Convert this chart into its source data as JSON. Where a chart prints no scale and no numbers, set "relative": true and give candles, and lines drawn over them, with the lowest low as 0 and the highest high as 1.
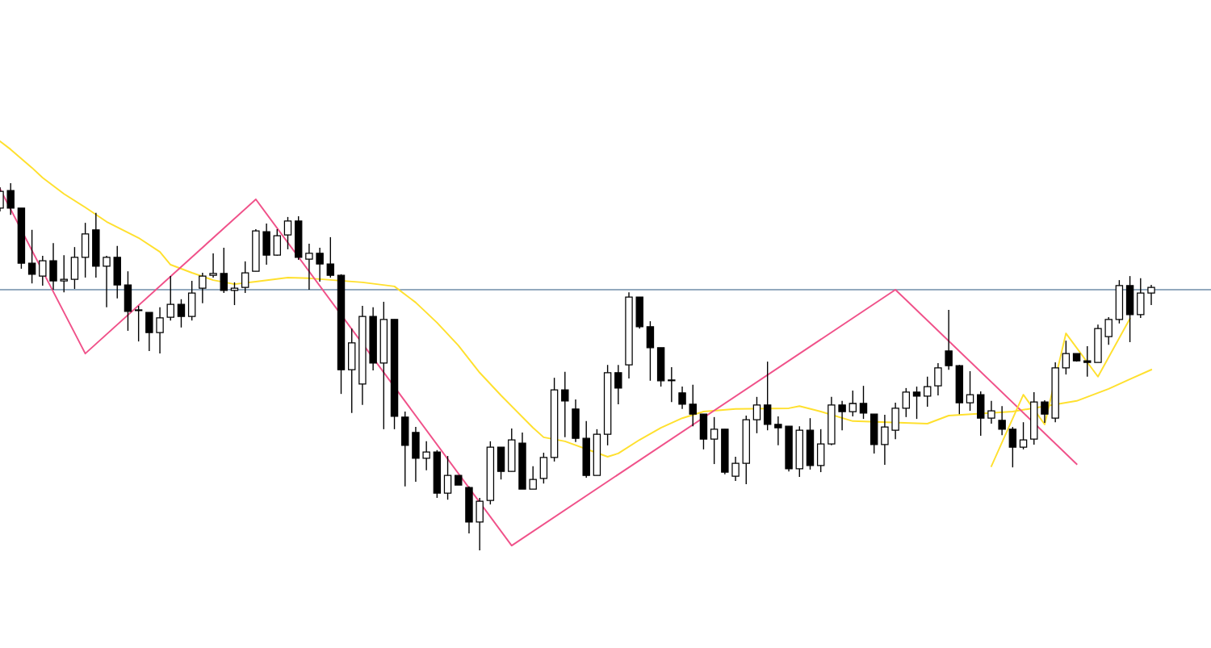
{
  "chart_data": {
    "type": "candlestick",
    "relative": true,
    "tick_labels": false,
    "categories": [
      null,
      null,
      null,
      null,
      null,
      null,
      null,
      null,
      null,
      null,
      null,
      null,
      null,
      null,
      null,
      null,
      null,
      null,
      null,
      null,
      null,
      null,
      null,
      null,
      null,
      null,
      null,
      null,
      null,
      null,
      null,
      null,
      null,
      null,
      null,
      null,
      null,
      null,
      null,
      null,
      null,
      null,
      null,
      null,
      null,
      null,
      null,
      null,
      null,
      null,
      null,
      null,
      null,
      null,
      null,
      null,
      null,
      null,
      null,
      null,
      null,
      null,
      null,
      null,
      null,
      null,
      null,
      null,
      null,
      null,
      null,
      null,
      null,
      null,
      null,
      null,
      null,
      null,
      null,
      null,
      null,
      null,
      null,
      null,
      null,
      null,
      null,
      null,
      null,
      null,
      null,
      null,
      null,
      null,
      null,
      null,
      null,
      null,
      null,
      null,
      null,
      null,
      null,
      null,
      null,
      null,
      null,
      null,
      null
    ],
    "ohlc": [
      [
        0.932,
        0.989,
        0.923,
        0.978
      ],
      [
        0.98,
        1.0,
        0.914,
        0.932
      ],
      [
        0.932,
        0.932,
        0.767,
        0.782
      ],
      [
        0.782,
        0.873,
        0.727,
        0.752
      ],
      [
        0.747,
        0.802,
        0.721,
        0.789
      ],
      [
        0.789,
        0.837,
        0.71,
        0.734
      ],
      [
        0.734,
        0.804,
        0.703,
        0.738
      ],
      [
        0.738,
        0.826,
        0.712,
        0.798
      ],
      [
        0.798,
        0.892,
        0.743,
        0.862
      ],
      [
        0.873,
        0.919,
        0.743,
        0.774
      ],
      [
        0.774,
        0.802,
        0.662,
        0.798
      ],
      [
        0.798,
        0.829,
        0.686,
        0.723
      ],
      [
        0.723,
        0.76,
        0.598,
        0.651
      ],
      [
        0.653,
        0.666,
        0.569,
        0.655
      ],
      [
        0.648,
        0.648,
        0.543,
        0.593
      ],
      [
        0.593,
        0.662,
        0.536,
        0.633
      ],
      [
        0.635,
        0.747,
        0.626,
        0.67
      ],
      [
        0.67,
        0.684,
        0.607,
        0.637
      ],
      [
        0.637,
        0.734,
        0.626,
        0.701
      ],
      [
        0.714,
        0.756,
        0.673,
        0.747
      ],
      [
        0.749,
        0.809,
        0.743,
        0.754
      ],
      [
        0.754,
        0.824,
        0.701,
        0.708
      ],
      [
        0.708,
        0.73,
        0.668,
        0.714
      ],
      [
        0.716,
        0.787,
        0.701,
        0.756
      ],
      [
        0.76,
        0.875,
        0.76,
        0.87
      ],
      [
        0.868,
        0.89,
        0.778,
        0.804
      ],
      [
        0.804,
        0.875,
        0.802,
        0.857
      ],
      [
        0.859,
        0.908,
        0.82,
        0.897
      ],
      [
        0.897,
        0.91,
        0.791,
        0.798
      ],
      [
        0.793,
        0.835,
        0.71,
        0.809
      ],
      [
        0.809,
        0.824,
        0.732,
        0.78
      ],
      [
        0.78,
        0.853,
        0.743,
        0.749
      ],
      [
        0.749,
        0.752,
        0.426,
        0.492
      ],
      [
        0.492,
        0.604,
        0.374,
        0.565
      ],
      [
        0.453,
        0.666,
        0.396,
        0.637
      ],
      [
        0.637,
        0.662,
        0.49,
        0.51
      ],
      [
        0.51,
        0.677,
        0.33,
        0.629
      ],
      [
        0.629,
        0.629,
        0.33,
        0.365
      ],
      [
        0.363,
        0.378,
        0.174,
        0.286
      ],
      [
        0.321,
        0.336,
        0.187,
        0.251
      ],
      [
        0.251,
        0.297,
        0.218,
        0.268
      ],
      [
        0.268,
        0.273,
        0.143,
        0.156
      ],
      [
        0.156,
        0.257,
        0.138,
        0.204
      ],
      [
        0.204,
        0.204,
        0.178,
        0.178
      ],
      [
        0.171,
        0.174,
        0.046,
        0.077
      ],
      [
        0.077,
        0.143,
        0.0,
        0.134
      ],
      [
        0.136,
        0.297,
        0.125,
        0.281
      ],
      [
        0.281,
        0.281,
        0.193,
        0.215
      ],
      [
        0.215,
        0.332,
        0.215,
        0.301
      ],
      [
        0.292,
        0.321,
        0.167,
        0.167
      ],
      [
        0.167,
        0.229,
        0.167,
        0.193
      ],
      [
        0.196,
        0.266,
        0.182,
        0.253
      ],
      [
        0.253,
        0.47,
        0.242,
        0.437
      ],
      [
        0.437,
        0.486,
        0.308,
        0.407
      ],
      [
        0.385,
        0.411,
        0.295,
        0.305
      ],
      [
        0.305,
        0.352,
        0.198,
        0.204
      ],
      [
        0.204,
        0.33,
        0.204,
        0.316
      ],
      [
        0.316,
        0.505,
        0.286,
        0.484
      ],
      [
        0.484,
        0.505,
        0.398,
        0.442
      ],
      [
        0.505,
        0.703,
        0.468,
        0.69
      ],
      [
        0.69,
        0.69,
        0.604,
        0.609
      ],
      [
        0.609,
        0.624,
        0.462,
        0.552
      ],
      [
        0.552,
        0.552,
        0.446,
        0.462
      ],
      [
        0.464,
        0.499,
        0.404,
        0.462
      ],
      [
        0.429,
        0.446,
        0.385,
        0.398
      ],
      [
        0.398,
        0.451,
        0.338,
        0.371
      ],
      [
        0.371,
        0.371,
        0.275,
        0.303
      ],
      [
        0.303,
        0.363,
        0.235,
        0.33
      ],
      [
        0.33,
        0.33,
        0.207,
        0.213
      ],
      [
        0.202,
        0.255,
        0.189,
        0.237
      ],
      [
        0.237,
        0.367,
        0.18,
        0.356
      ],
      [
        0.356,
        0.418,
        0.319,
        0.396
      ],
      [
        0.396,
        0.514,
        0.327,
        0.343
      ],
      [
        0.343,
        0.365,
        0.286,
        0.334
      ],
      [
        0.338,
        0.338,
        0.215,
        0.222
      ],
      [
        0.222,
        0.338,
        0.2,
        0.327
      ],
      [
        0.327,
        0.36,
        0.22,
        0.231
      ],
      [
        0.231,
        0.33,
        0.213,
        0.29
      ],
      [
        0.29,
        0.418,
        0.286,
        0.396
      ],
      [
        0.396,
        0.407,
        0.327,
        0.378
      ],
      [
        0.378,
        0.435,
        0.365,
        0.4
      ],
      [
        0.4,
        0.448,
        0.358,
        0.374
      ],
      [
        0.371,
        0.371,
        0.264,
        0.288
      ],
      [
        0.288,
        0.369,
        0.233,
        0.336
      ],
      [
        0.327,
        0.402,
        0.303,
        0.387
      ],
      [
        0.387,
        0.442,
        0.363,
        0.431
      ],
      [
        0.431,
        0.446,
        0.358,
        0.42
      ],
      [
        0.42,
        0.473,
        0.391,
        0.446
      ],
      [
        0.448,
        0.51,
        0.422,
        0.497
      ],
      [
        0.543,
        0.655,
        0.492,
        0.503
      ],
      [
        0.503,
        0.505,
        0.371,
        0.402
      ],
      [
        0.402,
        0.488,
        0.38,
        0.424
      ],
      [
        0.424,
        0.433,
        0.312,
        0.36
      ],
      [
        0.36,
        0.407,
        0.345,
        0.38
      ],
      [
        0.354,
        0.393,
        0.314,
        0.33
      ],
      [
        0.33,
        0.336,
        0.226,
        0.281
      ],
      [
        0.281,
        0.349,
        0.275,
        0.301
      ],
      [
        0.303,
        0.431,
        0.288,
        0.404
      ],
      [
        0.404,
        0.409,
        0.347,
        0.371
      ],
      [
        0.36,
        0.512,
        0.349,
        0.497
      ],
      [
        0.497,
        0.571,
        0.479,
        0.536
      ],
      [
        0.536,
        0.536,
        0.514,
        0.516
      ],
      [
        0.516,
        0.556,
        0.473,
        0.512
      ],
      [
        0.512,
        0.615,
        0.512,
        0.604
      ],
      [
        0.582,
        0.635,
        0.56,
        0.629
      ],
      [
        0.629,
        0.736,
        0.618,
        0.721
      ],
      [
        0.721,
        0.747,
        0.567,
        0.642
      ],
      [
        0.642,
        0.741,
        0.633,
        0.701
      ],
      [
        0.701,
        0.723,
        0.668,
        0.716
      ]
    ],
    "series": [
      {
        "type": "line",
        "color": "#ffe02e",
        "values": [
          1.114,
          1.092,
          null,
          1.042,
          1.015,
          null,
          0.971,
          null,
          0.934,
          null,
          0.895,
          null,
          null,
          0.851,
          null,
          0.813,
          0.778,
          null,
          0.756,
          null,
          0.736,
          null,
          0.725,
          null,
          0.732,
          null,
          null,
          0.743,
          null,
          0.741,
          null,
          null,
          null,
          null,
          0.73,
          null,
          null,
          0.719,
          null,
          0.675,
          null,
          0.62,
          null,
          0.558,
          null,
          0.484,
          null,
          0.422,
          null,
          null,
          0.334,
          0.308,
          null,
          0.297,
          null,
          null,
          null,
          0.255,
          0.264,
          null,
          0.301,
          null,
          0.334,
          null,
          0.36,
          null,
          0.378,
          null,
          null,
          0.385,
          null,
          null,
          null,
          null,
          0.387,
          0.393,
          null,
          0.378,
          null,
          null,
          0.352,
          null,
          null,
          null,
          null,
          null,
          null,
          0.345,
          null,
          0.367,
          null,
          null,
          null,
          null,
          null,
          0.378,
          null,
          null,
          null,
          null,
          null,
          0.407,
          null,
          null,
          0.44,
          null,
          0.466,
          null,
          0.492
        ]
      },
      {
        "type": "line",
        "color": "#f0528a",
        "values": [
          0.985,
          null,
          null,
          null,
          null,
          null,
          null,
          null,
          0.536,
          null,
          null,
          null,
          null,
          null,
          null,
          null,
          null,
          null,
          null,
          null,
          null,
          null,
          null,
          null,
          0.956,
          null,
          null,
          null,
          null,
          null,
          null,
          null,
          null,
          null,
          null,
          null,
          null,
          null,
          null,
          null,
          null,
          null,
          null,
          null,
          null,
          null,
          null,
          null,
          0.013,
          null,
          null,
          null,
          null,
          null,
          null,
          null,
          null,
          null,
          null,
          null,
          null,
          null,
          null,
          null,
          null,
          null,
          null,
          null,
          null,
          null,
          null,
          null,
          null,
          null,
          null,
          null,
          null,
          null,
          null,
          null,
          null,
          null,
          null,
          null,
          0.71,
          null,
          null,
          null,
          null,
          null,
          null,
          null,
          null,
          null,
          null,
          null,
          null,
          null,
          null,
          null,
          null,
          0.235,
          null,
          null,
          null,
          null,
          null,
          null,
          null
        ]
      },
      {
        "type": "line",
        "color": "#ffe02e",
        "values": [
          null,
          null,
          null,
          null,
          null,
          null,
          null,
          null,
          null,
          null,
          null,
          null,
          null,
          null,
          null,
          null,
          null,
          null,
          null,
          null,
          null,
          null,
          null,
          null,
          null,
          null,
          null,
          null,
          null,
          null,
          null,
          null,
          null,
          null,
          null,
          null,
          null,
          null,
          null,
          null,
          null,
          null,
          null,
          null,
          null,
          null,
          null,
          null,
          null,
          null,
          null,
          null,
          null,
          null,
          null,
          null,
          null,
          null,
          null,
          null,
          null,
          null,
          null,
          null,
          null,
          null,
          null,
          null,
          null,
          null,
          null,
          null,
          null,
          null,
          null,
          null,
          null,
          null,
          null,
          null,
          null,
          null,
          null,
          null,
          null,
          null,
          null,
          null,
          null,
          null,
          null,
          null,
          null,
          0.229,
          null,
          null,
          0.424,
          null,
          0.343,
          null,
          0.591,
          null,
          null,
          0.473,
          null,
          null,
          0.631,
          null,
          null
        ]
      }
    ],
    "ref_lines": [
      {
        "axis": "y",
        "value": 0.71,
        "color": "#6f8ca8"
      }
    ]
  }
}
